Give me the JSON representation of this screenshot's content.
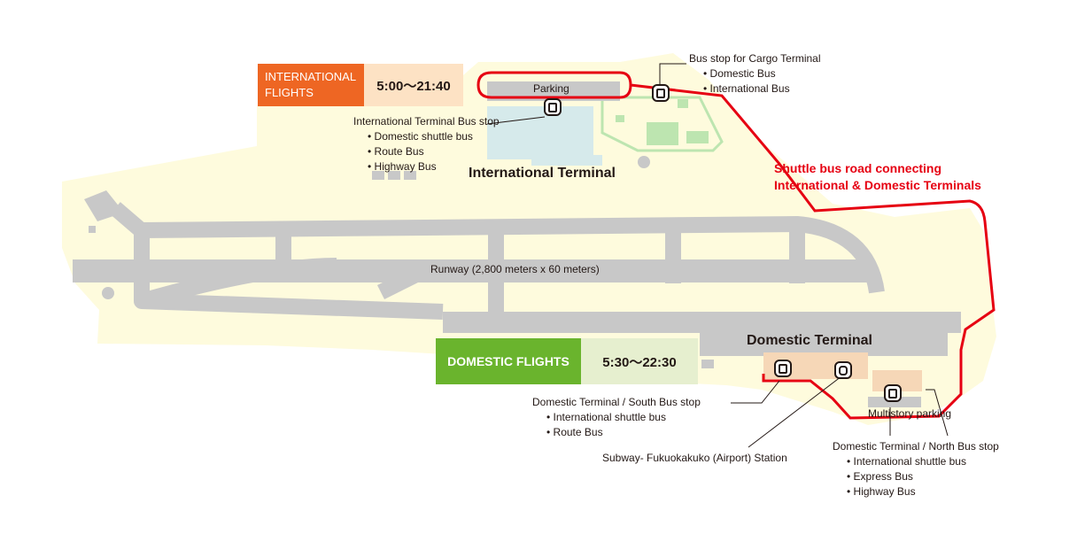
{
  "intl_flights": {
    "name": "INTERNATIONAL FLIGHTS",
    "hours": "5:00〜21:40",
    "name_color": "#ee6623",
    "hours_color": "#fde2c4"
  },
  "dom_flights": {
    "name": "DOMESTIC  FLIGHTS",
    "hours": "5:30〜22:30",
    "name_color": "#6ab42d",
    "hours_color": "#e6efcf"
  },
  "parking_label": "Parking",
  "cargo_stop": {
    "title": "Bus stop for Cargo Terminal",
    "items": [
      "Domestic Bus",
      "International Bus"
    ]
  },
  "intl_stop": {
    "title": "International Terminal Bus stop",
    "items": [
      "Domestic shuttle bus",
      "Route Bus",
      "Highway Bus"
    ]
  },
  "intl_terminal": "International Terminal",
  "shuttle_road": {
    "line1": "Shuttle bus road connecting",
    "line2": "International & Domestic Terminals",
    "color": "#e60012"
  },
  "runway": "Runway (2,800 meters x 60 meters)",
  "dom_terminal": "Domestic Terminal",
  "south_stop": {
    "title": "Domestic Terminal / South Bus stop",
    "items": [
      "International shuttle bus",
      "Route Bus"
    ]
  },
  "subway": "Subway- Fukuokakuko (Airport) Station",
  "multistory": "Multistory parking",
  "north_stop": {
    "title": "Domestic Terminal / North Bus stop",
    "items": [
      "International shuttle bus",
      "Express Bus",
      "Highway Bus"
    ]
  },
  "icons": {
    "bus": "bus-stop-icon",
    "train": "subway-icon"
  },
  "colors": {
    "ground": "#fefbdd",
    "runway": "#c8c8c8",
    "terminal_intl": "#d6eaeb",
    "cargo": "#bde5b0",
    "domestic_area": "#f6d7b7"
  }
}
